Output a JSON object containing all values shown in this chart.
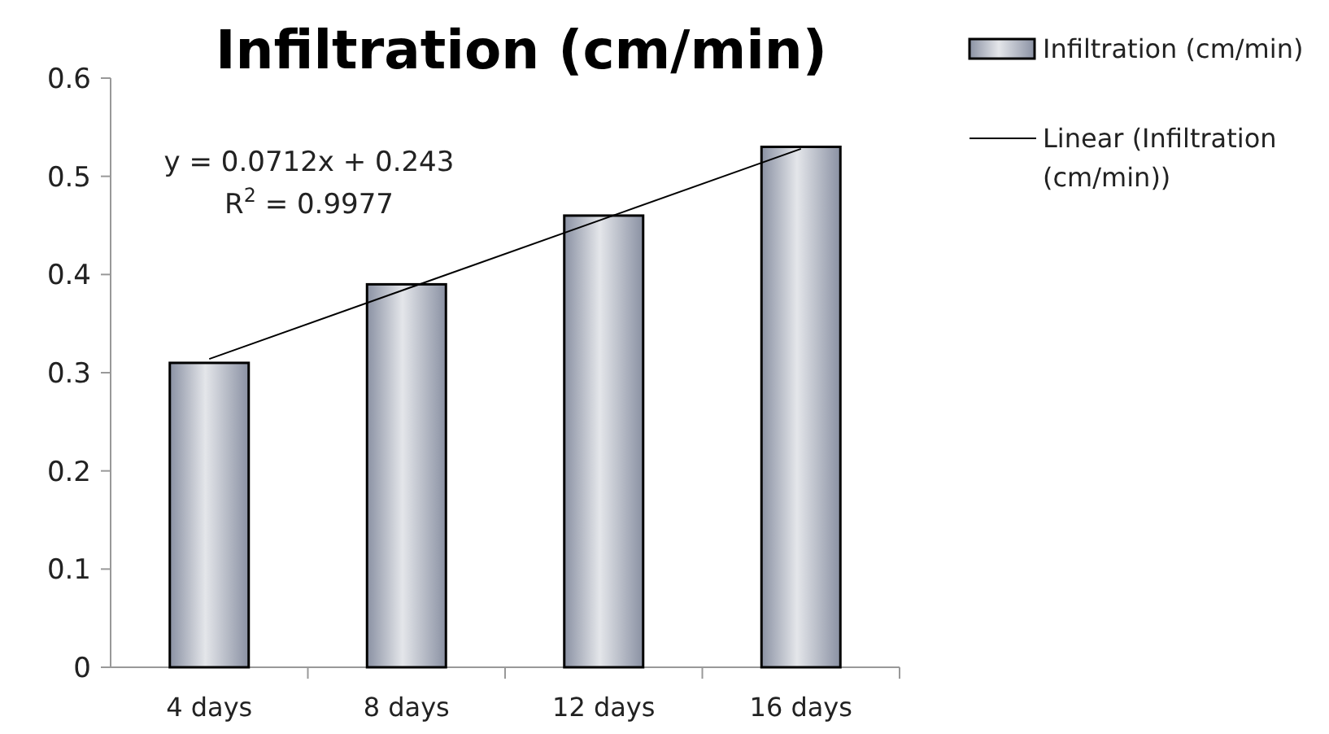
{
  "chart_data": {
    "type": "bar",
    "title": "Infiltration (cm/min)",
    "categories": [
      "4 days",
      "8 days",
      "12 days",
      "16 days"
    ],
    "series": [
      {
        "name": "Infiltration (cm/min)",
        "color": "#8a91a3",
        "values": [
          0.31,
          0.39,
          0.46,
          0.53
        ]
      },
      {
        "name": "Linear (Infiltration (cm/min))",
        "type": "line",
        "color": "#000000",
        "x": [
          "4 days",
          "16 days"
        ],
        "values": [
          0.314,
          0.528
        ]
      }
    ],
    "ylim": [
      0,
      0.6
    ],
    "yticks": [
      0,
      0.1,
      0.2,
      0.3,
      0.4,
      0.5,
      0.6
    ],
    "legend": "top right",
    "grid": false,
    "annotations": [
      "y = 0.0712x + 0.243",
      "R$^{2}$ = 0.9977"
    ]
  }
}
